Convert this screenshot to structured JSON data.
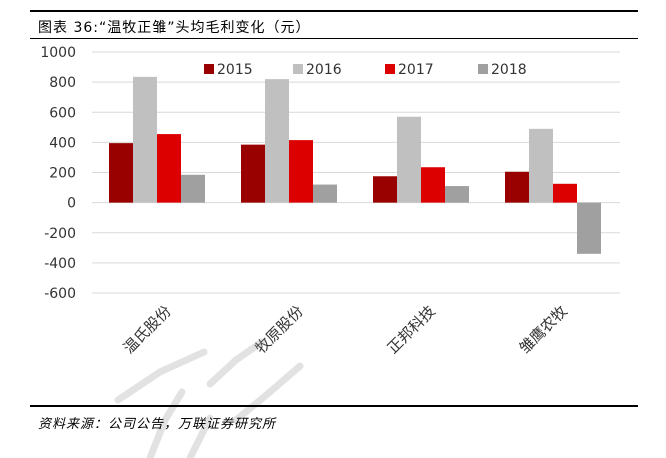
{
  "figure": {
    "title": "图表 36:“温牧正雏”头均毛利变化（元）",
    "source": "资料来源：公司公告，万联证券研究所"
  },
  "chart_data": {
    "type": "bar",
    "categories": [
      "温氏股份",
      "牧原股份",
      "正邦科技",
      "雏鹰农牧"
    ],
    "series": [
      {
        "name": "2015",
        "values": [
          395,
          385,
          175,
          205
        ],
        "color": "#990000"
      },
      {
        "name": "2016",
        "values": [
          835,
          820,
          570,
          490
        ],
        "color": "#c0c0c0"
      },
      {
        "name": "2017",
        "values": [
          455,
          415,
          235,
          125
        ],
        "color": "#dd0000"
      },
      {
        "name": "2018",
        "values": [
          185,
          120,
          110,
          -340
        ],
        "color": "#a0a0a0"
      }
    ],
    "ylim": [
      -600,
      1000
    ],
    "yticks": [
      "1000",
      "800",
      "600",
      "400",
      "200",
      "0",
      "-200",
      "-400",
      "-600"
    ],
    "ytick_values": [
      1000,
      800,
      600,
      400,
      200,
      0,
      -200,
      -400,
      -600
    ],
    "grid": true,
    "legend_position": "top"
  }
}
